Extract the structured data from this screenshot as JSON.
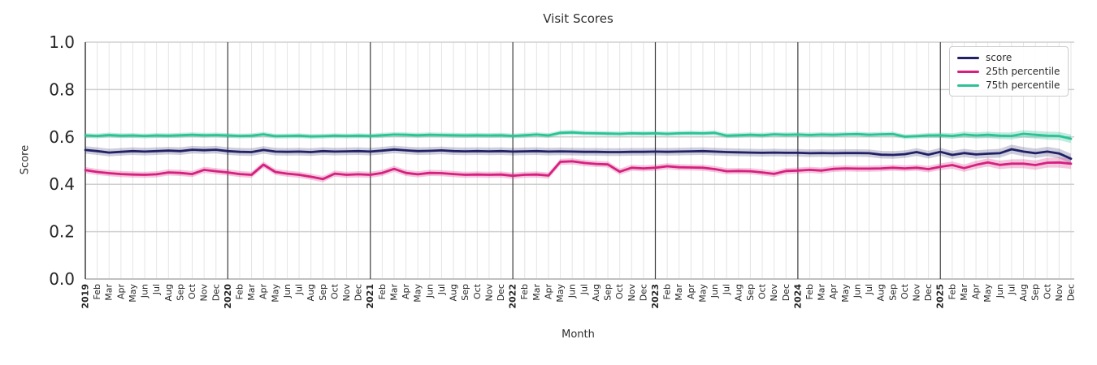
{
  "chart_data": {
    "type": "line",
    "title": "Visit Scores",
    "xlabel": "Month",
    "ylabel": "Score",
    "ylim": [
      0.0,
      1.0
    ],
    "yticks": [
      "0.0",
      "0.2",
      "0.4",
      "0.6",
      "0.8",
      "1.0"
    ],
    "grid": "on",
    "legend_position": "upper right",
    "x_labels": [
      "2019",
      "Feb",
      "Mar",
      "Apr",
      "May",
      "Jun",
      "Jul",
      "Aug",
      "Sep",
      "Oct",
      "Nov",
      "Dec",
      "2020",
      "Feb",
      "Mar",
      "Apr",
      "May",
      "Jun",
      "Jul",
      "Aug",
      "Sep",
      "Oct",
      "Nov",
      "Dec",
      "2021",
      "Feb",
      "Mar",
      "Apr",
      "May",
      "Jun",
      "Jul",
      "Aug",
      "Sep",
      "Oct",
      "Nov",
      "Dec",
      "2022",
      "Feb",
      "Mar",
      "Apr",
      "May",
      "Jun",
      "Jul",
      "Aug",
      "Sep",
      "Oct",
      "Nov",
      "Dec",
      "2023",
      "Feb",
      "Mar",
      "Apr",
      "May",
      "Jun",
      "Jul",
      "Aug",
      "Sep",
      "Oct",
      "Nov",
      "Dec",
      "2024",
      "Feb",
      "Mar",
      "Apr",
      "May",
      "Jun",
      "Jul",
      "Aug",
      "Sep",
      "Oct",
      "Nov",
      "Dec",
      "2025",
      "Feb",
      "Mar",
      "Apr",
      "May",
      "Jun",
      "Jul",
      "Aug",
      "Sep",
      "Oct",
      "Nov",
      "Dec"
    ],
    "series": [
      {
        "name": "score",
        "color": "#212266",
        "band_opacity": 0.22,
        "band_halfwidth": 0.016,
        "band_halfwidth_end": 0.021,
        "values": [
          0.545,
          0.54,
          0.534,
          0.537,
          0.54,
          0.538,
          0.54,
          0.542,
          0.54,
          0.546,
          0.544,
          0.546,
          0.54,
          0.537,
          0.536,
          0.545,
          0.538,
          0.537,
          0.538,
          0.536,
          0.54,
          0.538,
          0.539,
          0.54,
          0.538,
          0.542,
          0.547,
          0.543,
          0.54,
          0.541,
          0.543,
          0.54,
          0.539,
          0.54,
          0.539,
          0.54,
          0.538,
          0.539,
          0.54,
          0.538,
          0.539,
          0.538,
          0.537,
          0.537,
          0.536,
          0.536,
          0.537,
          0.537,
          0.538,
          0.537,
          0.538,
          0.539,
          0.54,
          0.538,
          0.536,
          0.535,
          0.534,
          0.533,
          0.534,
          0.533,
          0.533,
          0.531,
          0.532,
          0.531,
          0.532,
          0.532,
          0.531,
          0.525,
          0.524,
          0.527,
          0.536,
          0.525,
          0.537,
          0.524,
          0.532,
          0.526,
          0.529,
          0.531,
          0.548,
          0.538,
          0.531,
          0.538,
          0.53,
          0.508
        ]
      },
      {
        "name": "25th percentile",
        "color": "#d6207f",
        "band_opacity": 0.25,
        "band_halfwidth": 0.013,
        "band_halfwidth_end": 0.022,
        "values": [
          0.46,
          0.452,
          0.447,
          0.443,
          0.441,
          0.44,
          0.442,
          0.45,
          0.448,
          0.443,
          0.461,
          0.455,
          0.45,
          0.443,
          0.44,
          0.483,
          0.452,
          0.445,
          0.44,
          0.432,
          0.422,
          0.445,
          0.44,
          0.442,
          0.44,
          0.448,
          0.465,
          0.448,
          0.442,
          0.448,
          0.447,
          0.443,
          0.44,
          0.441,
          0.44,
          0.441,
          0.436,
          0.44,
          0.441,
          0.437,
          0.495,
          0.497,
          0.49,
          0.486,
          0.484,
          0.453,
          0.47,
          0.467,
          0.47,
          0.476,
          0.472,
          0.471,
          0.47,
          0.464,
          0.455,
          0.456,
          0.455,
          0.45,
          0.444,
          0.456,
          0.458,
          0.461,
          0.458,
          0.465,
          0.467,
          0.466,
          0.466,
          0.467,
          0.47,
          0.467,
          0.47,
          0.464,
          0.474,
          0.481,
          0.468,
          0.482,
          0.492,
          0.482,
          0.487,
          0.487,
          0.481,
          0.491,
          0.492,
          0.487
        ]
      },
      {
        "name": "75th percentile",
        "color": "#2cc295",
        "band_opacity": 0.3,
        "band_halfwidth": 0.01,
        "band_halfwidth_end": 0.018,
        "values": [
          0.606,
          0.604,
          0.608,
          0.605,
          0.606,
          0.604,
          0.606,
          0.605,
          0.607,
          0.609,
          0.607,
          0.608,
          0.606,
          0.604,
          0.605,
          0.611,
          0.603,
          0.604,
          0.605,
          0.602,
          0.603,
          0.605,
          0.604,
          0.605,
          0.604,
          0.607,
          0.61,
          0.609,
          0.607,
          0.609,
          0.608,
          0.607,
          0.606,
          0.607,
          0.606,
          0.607,
          0.604,
          0.607,
          0.61,
          0.606,
          0.617,
          0.619,
          0.616,
          0.615,
          0.614,
          0.613,
          0.615,
          0.614,
          0.615,
          0.613,
          0.615,
          0.616,
          0.615,
          0.617,
          0.605,
          0.607,
          0.609,
          0.607,
          0.611,
          0.609,
          0.61,
          0.608,
          0.61,
          0.609,
          0.611,
          0.612,
          0.609,
          0.611,
          0.612,
          0.601,
          0.603,
          0.606,
          0.607,
          0.604,
          0.61,
          0.606,
          0.609,
          0.605,
          0.604,
          0.613,
          0.609,
          0.605,
          0.604,
          0.592
        ]
      }
    ]
  }
}
